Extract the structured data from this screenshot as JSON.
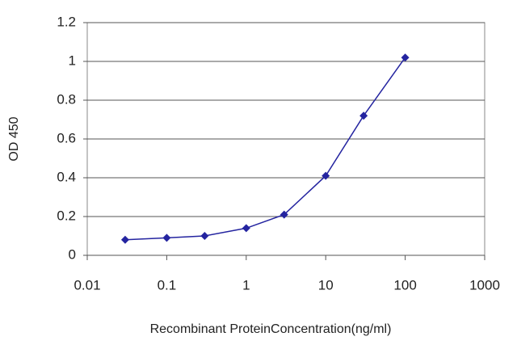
{
  "chart_data": {
    "type": "line",
    "x_label": "Recombinant ProteinConcentration(ng/ml)",
    "y_label": "OD 450",
    "xscale": "log",
    "grid": true,
    "series": [
      {
        "color": "#2424a0",
        "x": [
          0.03,
          0.1,
          0.3,
          1,
          3,
          10,
          30,
          100
        ],
        "values": [
          0.08,
          0.09,
          0.1,
          0.14,
          0.21,
          0.41,
          0.72,
          1.02
        ]
      }
    ],
    "xlim": [
      0.01,
      1000
    ],
    "xticks": [
      0.01,
      0.1,
      1,
      10,
      100,
      1000
    ],
    "ylim": [
      0,
      1.2
    ],
    "yticks": [
      0,
      0.2,
      0.4,
      0.6,
      0.8,
      1,
      1.2
    ]
  }
}
